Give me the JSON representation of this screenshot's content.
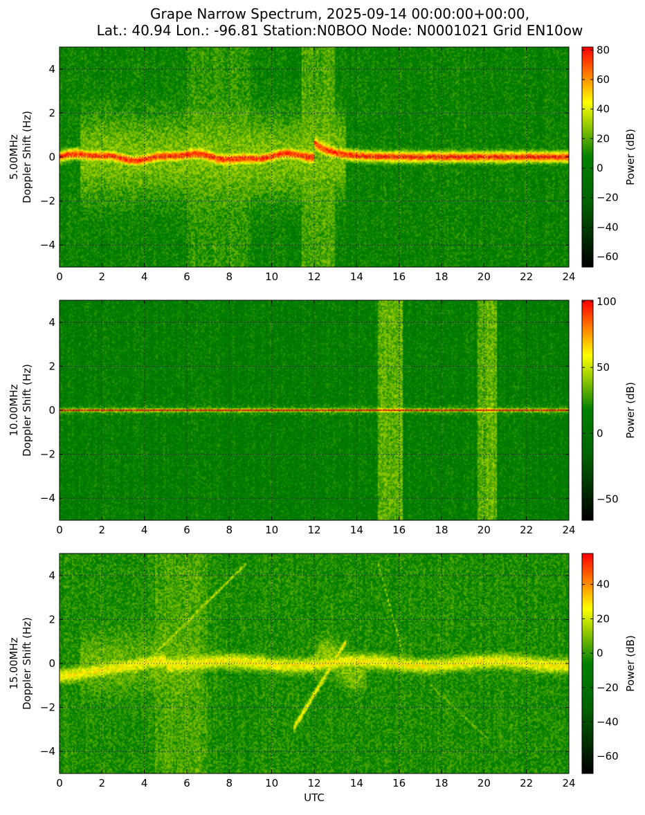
{
  "title_line1": "Grape Narrow Spectrum, 2025-09-14 00:00:00+00:00,",
  "title_line2": "Lat.: 40.94 Lon.: -96.81 Station:N0BOO Node: N0001021 Grid EN10ow",
  "chart_data": [
    {
      "type": "heatmap",
      "band": "5.00MHz",
      "ylabel": "5.00MHz Doppler Shift (Hz)",
      "ylabel_lines": [
        "5.00MHz",
        "Doppler Shift (Hz)"
      ],
      "xlabel": "",
      "xlim": [
        0,
        24
      ],
      "ylim": [
        -5,
        5
      ],
      "xticks": [
        "0",
        "2",
        "4",
        "6",
        "8",
        "10",
        "12",
        "14",
        "16",
        "18",
        "20",
        "22",
        "24"
      ],
      "yticks": [
        "4",
        "2",
        "0",
        "−2",
        "−4"
      ],
      "colorbar_label": "Power (dB)",
      "colorbar_range": [
        -67,
        82
      ],
      "colorbar_ticks": [
        "80",
        "60",
        "40",
        "20",
        "0",
        "−20",
        "−40",
        "−60"
      ],
      "colormap": [
        "#000000",
        "#006400",
        "#008000",
        "#ffff00",
        "#ff0000"
      ],
      "grid": true
    },
    {
      "type": "heatmap",
      "band": "10.00MHz",
      "ylabel": "10.00MHz Doppler Shift (Hz)",
      "ylabel_lines": [
        "10.00MHz",
        "Doppler Shift (Hz)"
      ],
      "xlabel": "",
      "xlim": [
        0,
        24
      ],
      "ylim": [
        -5,
        5
      ],
      "xticks": [
        "0",
        "2",
        "4",
        "6",
        "8",
        "10",
        "12",
        "14",
        "16",
        "18",
        "20",
        "22",
        "24"
      ],
      "yticks": [
        "4",
        "2",
        "0",
        "−2",
        "−4"
      ],
      "colorbar_label": "Power (dB)",
      "colorbar_range": [
        -66,
        101
      ],
      "colorbar_ticks": [
        "100",
        "50",
        "0",
        "−50"
      ],
      "colormap": [
        "#000000",
        "#006400",
        "#008000",
        "#ffff00",
        "#ff0000"
      ],
      "grid": true
    },
    {
      "type": "heatmap",
      "band": "15.00MHz",
      "ylabel": "15.00MHz Doppler Shift (Hz)",
      "ylabel_lines": [
        "15.00MHz",
        "Doppler Shift (Hz)"
      ],
      "xlabel": "UTC",
      "xlim": [
        0,
        24
      ],
      "ylim": [
        -5,
        5
      ],
      "xticks": [
        "0",
        "2",
        "4",
        "6",
        "8",
        "10",
        "12",
        "14",
        "16",
        "18",
        "20",
        "22",
        "24"
      ],
      "yticks": [
        "4",
        "2",
        "0",
        "−2",
        "−4"
      ],
      "colorbar_label": "Power (dB)",
      "colorbar_range": [
        -70,
        58
      ],
      "colorbar_ticks": [
        "40",
        "20",
        "0",
        "−20",
        "−40",
        "−60"
      ],
      "colormap": [
        "#000000",
        "#006400",
        "#008000",
        "#ffff00",
        "#ff0000"
      ],
      "grid": true
    }
  ]
}
